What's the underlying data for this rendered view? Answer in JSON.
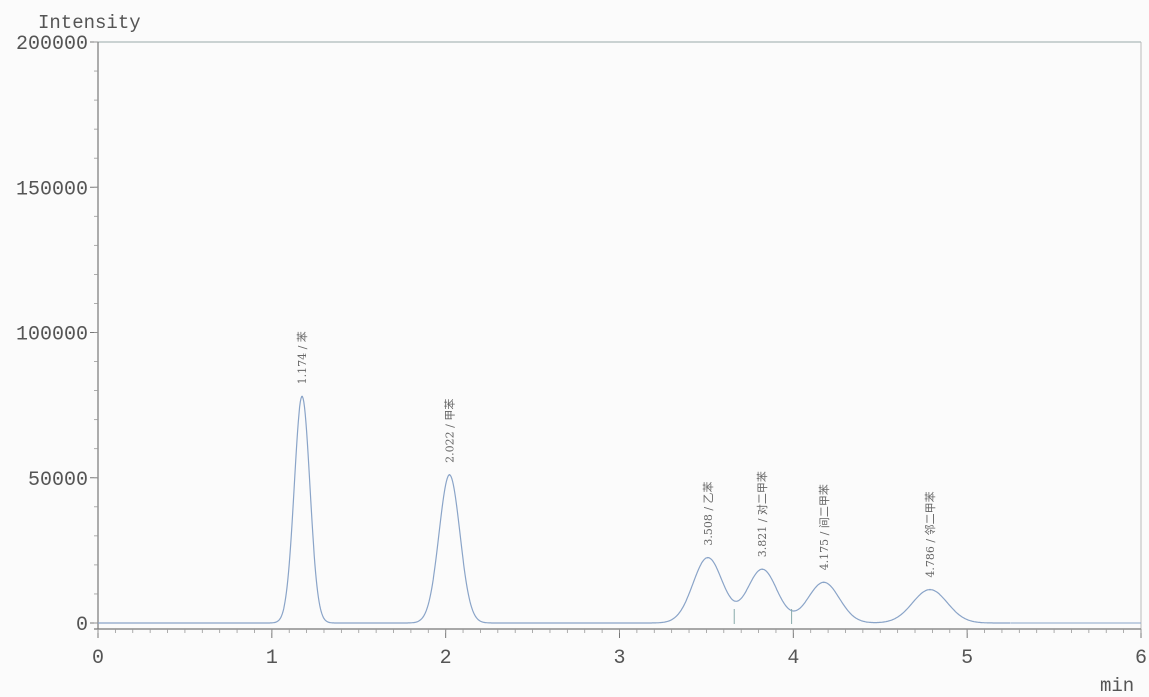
{
  "chart_data": {
    "type": "line",
    "title": "",
    "xlabel": "min",
    "ylabel": "Intensity",
    "xlim": [
      0,
      6
    ],
    "ylim": [
      0,
      200000
    ],
    "x_ticks": [
      "0",
      "1",
      "2",
      "3",
      "4",
      "5",
      "6"
    ],
    "y_ticks": [
      "0",
      "50000",
      "100000",
      "150000",
      "200000"
    ],
    "line_color": "#8aa4c8",
    "peaks": [
      {
        "rt": 1.174,
        "height": 78000,
        "width": 0.045,
        "label": "1.174 / 苯"
      },
      {
        "rt": 2.022,
        "height": 51000,
        "width": 0.06,
        "label": "2.022 / 甲苯"
      },
      {
        "rt": 3.508,
        "height": 22500,
        "width": 0.085,
        "label": "3.508 / 乙苯"
      },
      {
        "rt": 3.821,
        "height": 18500,
        "width": 0.085,
        "label": "3.821 / 对二甲苯"
      },
      {
        "rt": 4.175,
        "height": 14000,
        "width": 0.09,
        "label": "4.175 / 间二甲苯"
      },
      {
        "rt": 4.786,
        "height": 11500,
        "width": 0.1,
        "label": "4.786 / 邻二甲苯"
      }
    ]
  }
}
